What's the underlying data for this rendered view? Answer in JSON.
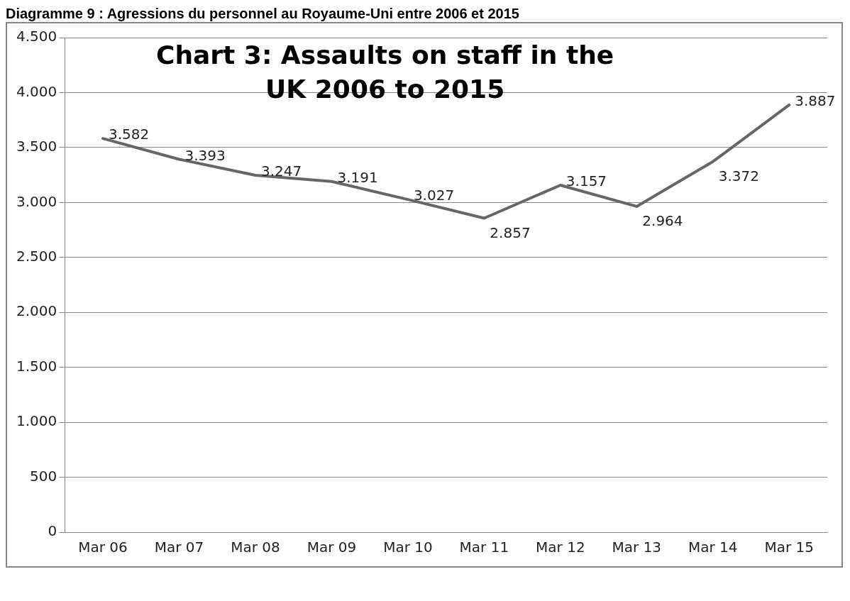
{
  "chart_data": {
    "type": "line",
    "title": "Chart 3: Assaults on staff in the UK 2006 to 2015",
    "annotations": [
      "Diagramme 9 : Agressions du personnel au Royaume-Uni entre 2006 et 2015"
    ],
    "categories": [
      "Mar 06",
      "Mar 07",
      "Mar 08",
      "Mar 09",
      "Mar 10",
      "Mar 11",
      "Mar 12",
      "Mar 13",
      "Mar 14",
      "Mar 15"
    ],
    "series": [
      {
        "color": "#666666",
        "values": [
          3582,
          3393,
          3247,
          3191,
          3027,
          2857,
          3157,
          2964,
          3372,
          3887
        ],
        "value_labels": [
          "3.582",
          "3.393",
          "3.247",
          "3.191",
          "3.027",
          "2.857",
          "3.157",
          "2.964",
          "3.372",
          "3.887"
        ]
      }
    ],
    "ylim": [
      0,
      4500
    ],
    "yticks": [
      {
        "value": 0,
        "label": "0"
      },
      {
        "value": 500,
        "label": "500"
      },
      {
        "value": 1000,
        "label": "1.000"
      },
      {
        "value": 1500,
        "label": "1.500"
      },
      {
        "value": 2000,
        "label": "2.000"
      },
      {
        "value": 2500,
        "label": "2.500"
      },
      {
        "value": 3000,
        "label": "3.000"
      },
      {
        "value": 3500,
        "label": "3.500"
      },
      {
        "value": 4000,
        "label": "4.000"
      },
      {
        "value": 4500,
        "label": "4.500"
      }
    ],
    "grid": "y",
    "legend": false,
    "marker": "none",
    "line_style": "solid"
  }
}
